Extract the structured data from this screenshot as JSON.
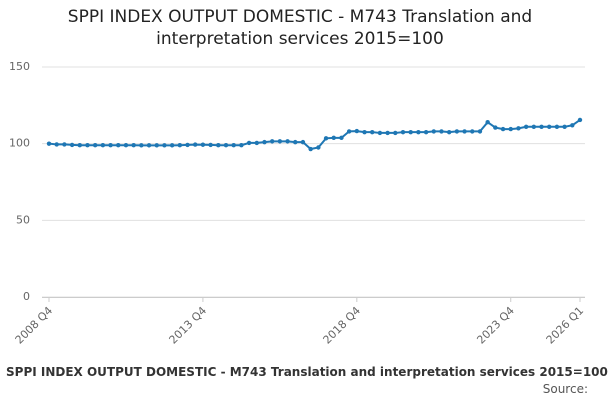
{
  "chart_data": {
    "type": "line",
    "title": "SPPI INDEX OUTPUT DOMESTIC - M743 Translation and interpretation services 2015=100",
    "footer": "SPPI INDEX OUTPUT DOMESTIC - M743 Translation and interpretation services 2015=100",
    "source": "Source:",
    "categories": [
      "2008 Q4",
      null,
      null,
      null,
      null,
      null,
      null,
      null,
      null,
      null,
      null,
      null,
      null,
      null,
      null,
      null,
      null,
      null,
      null,
      null,
      "2013 Q4",
      null,
      null,
      null,
      null,
      null,
      null,
      null,
      null,
      null,
      null,
      null,
      null,
      null,
      null,
      null,
      null,
      null,
      null,
      null,
      "2018 Q4",
      null,
      null,
      null,
      null,
      null,
      null,
      null,
      null,
      null,
      null,
      null,
      null,
      null,
      null,
      null,
      null,
      null,
      null,
      null,
      "2023 Q4",
      null,
      null,
      null,
      null,
      null,
      null,
      null,
      null,
      "2026 Q1"
    ],
    "series": [
      {
        "color": "#1f77b4",
        "values": [
          100,
          99.5,
          99.5,
          99.2,
          99,
          99,
          99,
          99,
          99,
          99,
          99,
          99,
          98.9,
          98.9,
          98.9,
          98.9,
          98.9,
          99,
          99.2,
          99.4,
          99.3,
          99.2,
          99,
          99,
          99,
          99,
          100.5,
          100.5,
          101,
          101.5,
          101.5,
          101.5,
          101,
          101,
          96.5,
          97.5,
          103.5,
          103.8,
          103.8,
          108,
          108.2,
          107.5,
          107.5,
          107,
          107,
          107,
          107.5,
          107.5,
          107.5,
          107.5,
          108,
          108,
          107.5,
          108,
          108,
          108,
          108,
          114,
          110.5,
          109.5,
          109.5,
          110,
          111,
          111,
          111,
          111,
          111,
          111,
          112,
          115.5
        ]
      }
    ],
    "ylim": [
      0,
      150
    ],
    "yticks": [
      0,
      50,
      100,
      150
    ],
    "grid": true
  }
}
